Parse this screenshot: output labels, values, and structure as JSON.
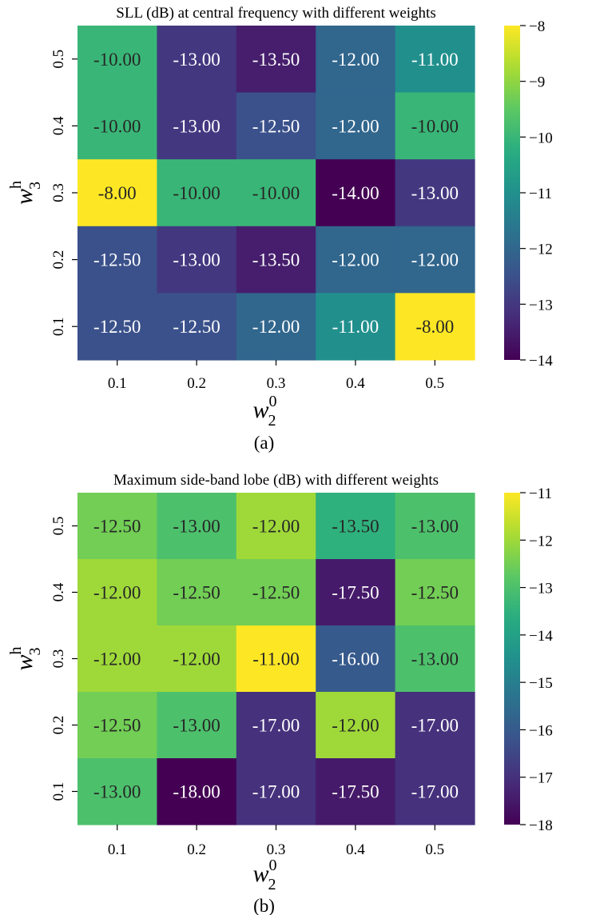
{
  "chart_data": [
    {
      "type": "heatmap",
      "title": "SLL (dB) at central frequency with different weights",
      "caption": "(a)",
      "xlabel": {
        "base": "w",
        "sub": "2",
        "sup": "0"
      },
      "ylabel": {
        "base": "w",
        "sub": "3",
        "sup": "h"
      },
      "x": [
        "0.1",
        "0.2",
        "0.3",
        "0.4",
        "0.5"
      ],
      "y": [
        "0.5",
        "0.4",
        "0.3",
        "0.2",
        "0.1"
      ],
      "values": [
        [
          -10.0,
          -13.0,
          -13.5,
          -12.0,
          -11.0
        ],
        [
          -10.0,
          -13.0,
          -12.5,
          -12.0,
          -10.0
        ],
        [
          -8.0,
          -10.0,
          -10.0,
          -14.0,
          -13.0
        ],
        [
          -12.5,
          -13.0,
          -13.5,
          -12.0,
          -12.0
        ],
        [
          -12.5,
          -12.5,
          -12.0,
          -11.0,
          -8.0
        ]
      ],
      "vmin": -14,
      "vmax": -8,
      "colorbar_ticks": [
        -8,
        -9,
        -10,
        -11,
        -12,
        -13,
        -14
      ],
      "colormap": "viridis"
    },
    {
      "type": "heatmap",
      "title": "Maximum side-band lobe (dB) with different weights",
      "caption": "(b)",
      "xlabel": {
        "base": "w",
        "sub": "2",
        "sup": "0"
      },
      "ylabel": {
        "base": "w",
        "sub": "3",
        "sup": "h"
      },
      "x": [
        "0.1",
        "0.2",
        "0.3",
        "0.4",
        "0.5"
      ],
      "y": [
        "0.5",
        "0.4",
        "0.3",
        "0.2",
        "0.1"
      ],
      "values": [
        [
          -12.5,
          -13.0,
          -12.0,
          -13.5,
          -13.0
        ],
        [
          -12.0,
          -12.5,
          -12.5,
          -17.5,
          -12.5
        ],
        [
          -12.0,
          -12.0,
          -11.0,
          -16.0,
          -13.0
        ],
        [
          -12.5,
          -13.0,
          -17.0,
          -12.0,
          -17.0
        ],
        [
          -13.0,
          -18.0,
          -17.0,
          -17.5,
          -17.0
        ]
      ],
      "vmin": -18,
      "vmax": -11,
      "colorbar_ticks": [
        -11,
        -12,
        -13,
        -14,
        -15,
        -16,
        -17,
        -18
      ],
      "colormap": "viridis"
    }
  ]
}
